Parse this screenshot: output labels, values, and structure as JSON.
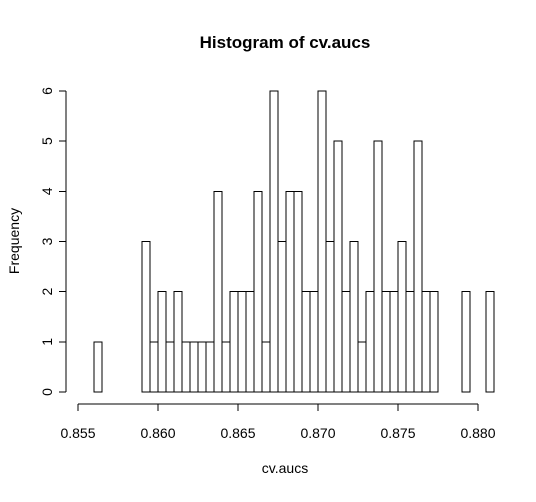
{
  "chart_data": {
    "type": "bar",
    "title": "Histogram of cv.aucs",
    "xlabel": "cv.aucs",
    "ylabel": "Frequency",
    "xlim": [
      0.8555,
      0.881
    ],
    "ylim": [
      0,
      6
    ],
    "bin_start": 0.856,
    "bin_width": 0.0005,
    "x_ticks": [
      0.855,
      0.86,
      0.865,
      0.87,
      0.875,
      0.88
    ],
    "x_tick_labels": [
      "0.855",
      "0.860",
      "0.865",
      "0.870",
      "0.875",
      "0.880"
    ],
    "y_ticks": [
      0,
      1,
      2,
      3,
      4,
      5,
      6
    ],
    "y_tick_labels": [
      "0",
      "1",
      "2",
      "3",
      "4",
      "5",
      "6"
    ],
    "values": [
      1,
      0,
      0,
      0,
      0,
      0,
      3,
      1,
      2,
      1,
      2,
      1,
      1,
      1,
      1,
      4,
      1,
      2,
      2,
      2,
      4,
      1,
      6,
      3,
      4,
      4,
      2,
      2,
      6,
      3,
      5,
      2,
      3,
      1,
      2,
      5,
      2,
      2,
      3,
      2,
      5,
      2,
      2,
      0,
      0,
      0,
      2,
      0,
      0,
      2
    ],
    "grid": false,
    "legend": "none"
  }
}
